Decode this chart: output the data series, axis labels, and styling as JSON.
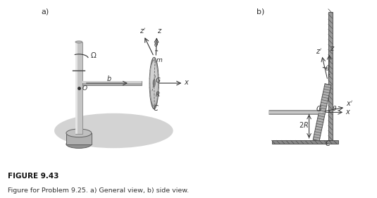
{
  "fig_width": 5.35,
  "fig_height": 2.81,
  "dpi": 100,
  "bg_color": "#ffffff",
  "label_a": "a)",
  "label_b": "b)",
  "figure_title": "FIGURE 9.43",
  "figure_caption": "Figure for Problem 9.25. a) General view, b) side view.",
  "shadow_color": "#d3d3d3",
  "text_color": "#333333",
  "theta_deg": 12
}
